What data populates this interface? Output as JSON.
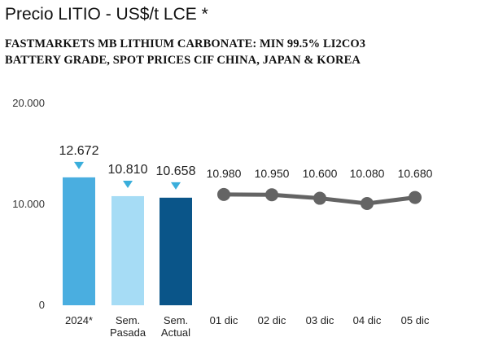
{
  "header": {
    "title": "Precio LITIO - US$/t LCE *",
    "subtitle_line1": "FASTMARKETS MB LITHIUM CARBONATE: MIN 99.5% LI2CO3",
    "subtitle_line2": "BATTERY GRADE, SPOT PRICES CIF CHINA, JAPAN & KOREA"
  },
  "chart_data": {
    "type": "bar+line",
    "title": "Precio LITIO - US$/t LCE *",
    "subtitle": "FASTMARKETS MB LITHIUM CARBONATE: MIN 99.5% LI2CO3 BATTERY GRADE, SPOT PRICES CIF CHINA, JAPAN & KOREA",
    "ylim": [
      0,
      20000
    ],
    "y_ticks": [
      {
        "value": 0,
        "label": "0"
      },
      {
        "value": 10000,
        "label": "10.000"
      },
      {
        "value": 20000,
        "label": "20.000"
      }
    ],
    "grid": false,
    "bars": [
      {
        "label_lines": [
          "2024*"
        ],
        "value": 12672,
        "value_label": "12.672",
        "color": "#4aaee0"
      },
      {
        "label_lines": [
          "Sem.",
          "Pasada"
        ],
        "value": 10810,
        "value_label": "10.810",
        "color": "#a6dcf5"
      },
      {
        "label_lines": [
          "Sem.",
          "Actual"
        ],
        "value": 10658,
        "value_label": "10.658",
        "color": "#0a5589"
      }
    ],
    "marker_color": "#3aaedb",
    "line": {
      "color": "#646464",
      "points": [
        {
          "label": "01 dic",
          "value": 10980,
          "value_label": "10.980"
        },
        {
          "label": "02 dic",
          "value": 10950,
          "value_label": "10.950"
        },
        {
          "label": "03 dic",
          "value": 10600,
          "value_label": "10.600"
        },
        {
          "label": "04 dic",
          "value": 10080,
          "value_label": "10.080"
        },
        {
          "label": "05 dic",
          "value": 10680,
          "value_label": "10.680"
        }
      ]
    }
  }
}
